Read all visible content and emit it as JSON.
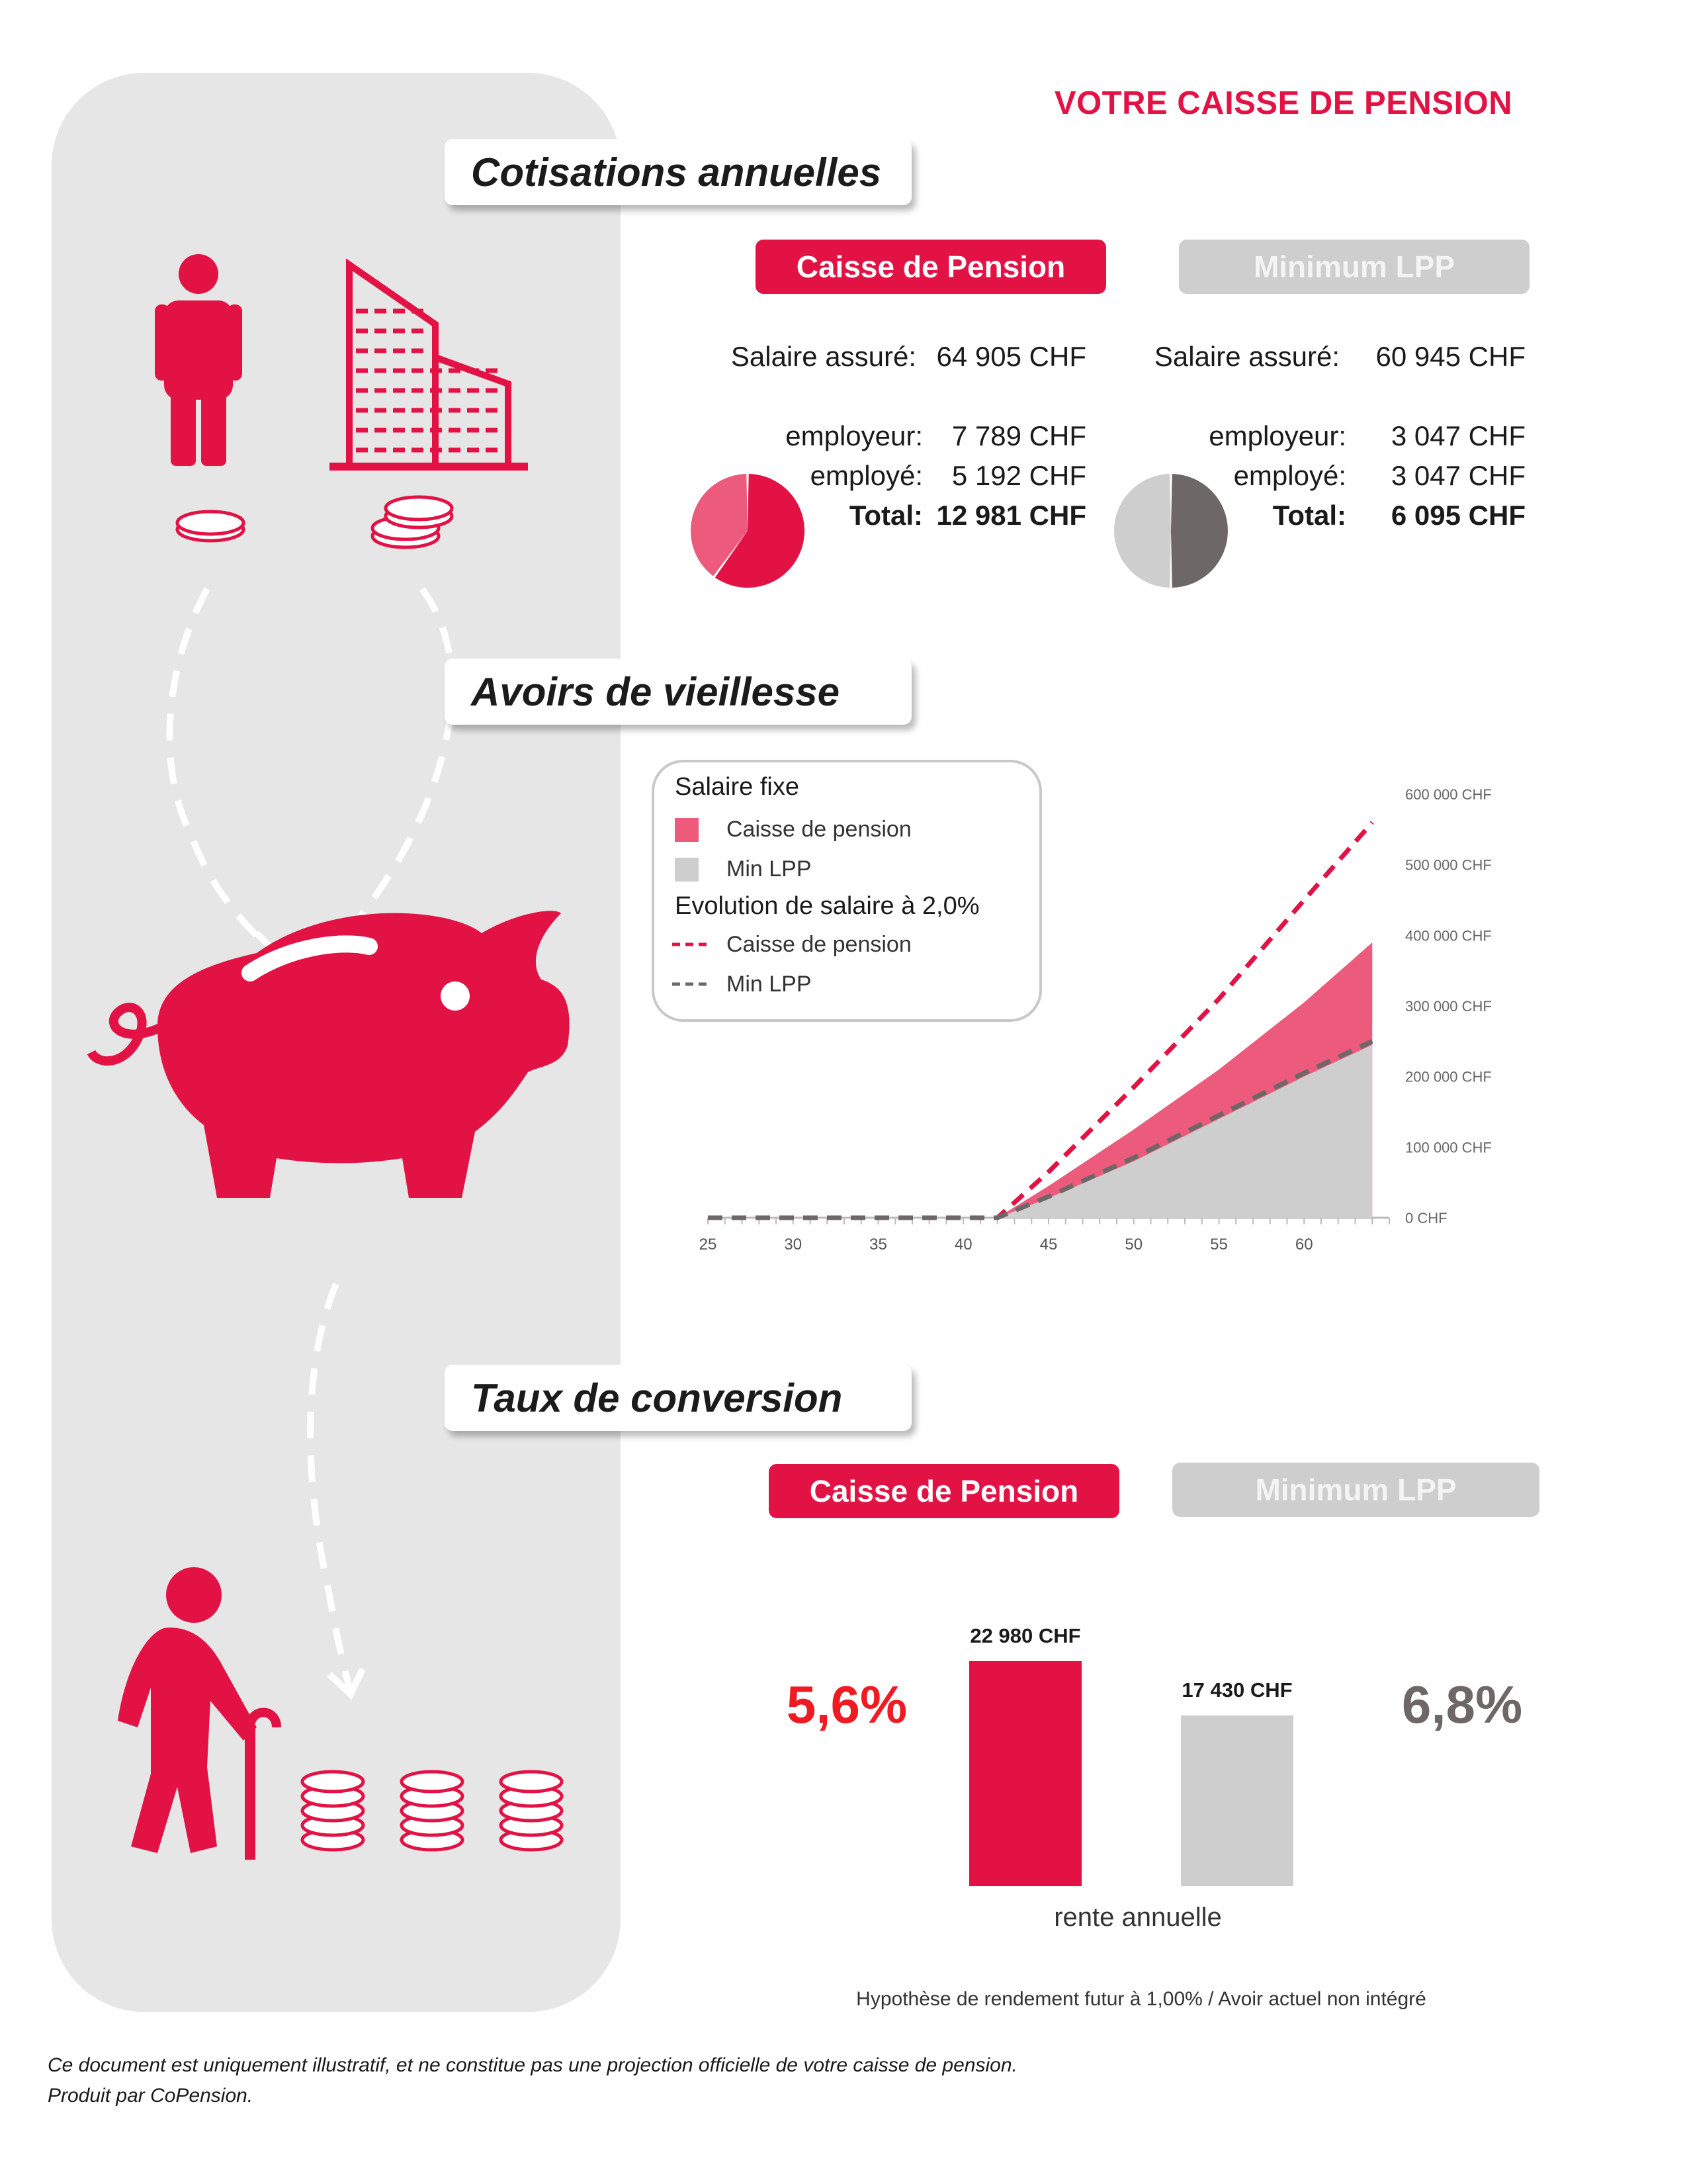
{
  "header": {
    "title": "VOTRE CAISSE DE PENSION"
  },
  "sections": {
    "cotisations": "Cotisations annuelles",
    "avoirs": "Avoirs de vieillesse",
    "conversion": "Taux de conversion"
  },
  "cotisations": {
    "caisse": {
      "pill": "Caisse de Pension",
      "salaire_label": "Salaire assuré:",
      "salaire_value": "64 905 CHF",
      "employeur_label": "employeur:",
      "employeur_value": "7 789 CHF",
      "employe_label": "employé:",
      "employe_value": "5 192 CHF",
      "total_label": "Total:",
      "total_value": "12 981 CHF",
      "pie": {
        "employeur": 7789,
        "employe": 5192,
        "employeur_color": "#e31245",
        "employe_color": "#ec5a7c"
      }
    },
    "lpp": {
      "pill": "Minimum LPP",
      "salaire_label": "Salaire assuré:",
      "salaire_value": "60 945 CHF",
      "employeur_label": "employeur:",
      "employeur_value": "3 047 CHF",
      "employe_label": "employé:",
      "employe_value": "3 047 CHF",
      "total_label": "Total:",
      "total_value": "6 095 CHF",
      "pie": {
        "employeur": 3047,
        "employe": 3047,
        "employeur_color": "#6d6867",
        "employe_color": "#cfcecf"
      }
    }
  },
  "legend": {
    "group1": "Salaire fixe",
    "item1": "Caisse de pension",
    "item2": "Min LPP",
    "group2": "Evolution de salaire à 2,0%",
    "item3": "Caisse de pension",
    "item4": "Min LPP"
  },
  "chart_data": [
    {
      "type": "area",
      "x": [
        25,
        30,
        35,
        40,
        42,
        45,
        50,
        55,
        60,
        64
      ],
      "xticks": [
        "25",
        "30",
        "35",
        "40",
        "45",
        "50",
        "55",
        "60"
      ],
      "yticks": [
        "0 CHF",
        "100 000 CHF",
        "200 000 CHF",
        "300 000 CHF",
        "400 000 CHF",
        "500 000 CHF",
        "600 000 CHF"
      ],
      "ylim": [
        0,
        600000
      ],
      "xlim": [
        25,
        65
      ],
      "series": [
        {
          "name": "Caisse de pension",
          "style": "area",
          "color": "#ec5a7c",
          "values": [
            0,
            0,
            0,
            0,
            0,
            45000,
            125000,
            210000,
            305000,
            390000
          ]
        },
        {
          "name": "Min LPP",
          "style": "area",
          "color": "#cfcecf",
          "values": [
            0,
            0,
            0,
            0,
            0,
            28000,
            80000,
            140000,
            200000,
            245000
          ]
        },
        {
          "name": "Caisse de pension",
          "style": "dashed",
          "color": "#e31245",
          "values": [
            0,
            0,
            0,
            0,
            0,
            65000,
            185000,
            310000,
            450000,
            560000
          ]
        },
        {
          "name": "Min LPP",
          "style": "dashed",
          "color": "#6d6867",
          "values": [
            0,
            0,
            0,
            0,
            0,
            30000,
            85000,
            145000,
            205000,
            250000
          ]
        }
      ]
    },
    {
      "type": "bar",
      "categories": [
        "Caisse de Pension",
        "Minimum LPP"
      ],
      "values": [
        22980,
        17430
      ],
      "labels": [
        "22 980 CHF",
        "17 430 CHF"
      ],
      "colors": [
        "#e31245",
        "#cfcecf"
      ],
      "xlabel": "rente annuelle",
      "ylim": [
        0,
        25000
      ]
    }
  ],
  "conversion": {
    "caisse_pill": "Caisse de Pension",
    "lpp_pill": "Minimum LPP",
    "caisse_rate": "5,6%",
    "lpp_rate": "6,8%",
    "caisse_color": "#ef1a22",
    "lpp_color": "#6d6867"
  },
  "footer": {
    "hypothese": "Hypothèse de rendement futur à 1,00% / Avoir actuel non intégré",
    "disclaimer_line1": "Ce document est uniquement illustratif, et ne constitue pas une projection officielle de votre caisse de pension.",
    "disclaimer_line2": "Produit par CoPension."
  },
  "colors": {
    "accent": "#e31245",
    "grey": "#cfcecf",
    "dark_grey": "#6d6867",
    "sidebar": "#e6e6e7"
  },
  "icons": [
    "person-icon",
    "building-icon",
    "coin-stack-icon",
    "piggy-bank-icon",
    "elderly-person-icon",
    "dashed-arrow-icon"
  ]
}
